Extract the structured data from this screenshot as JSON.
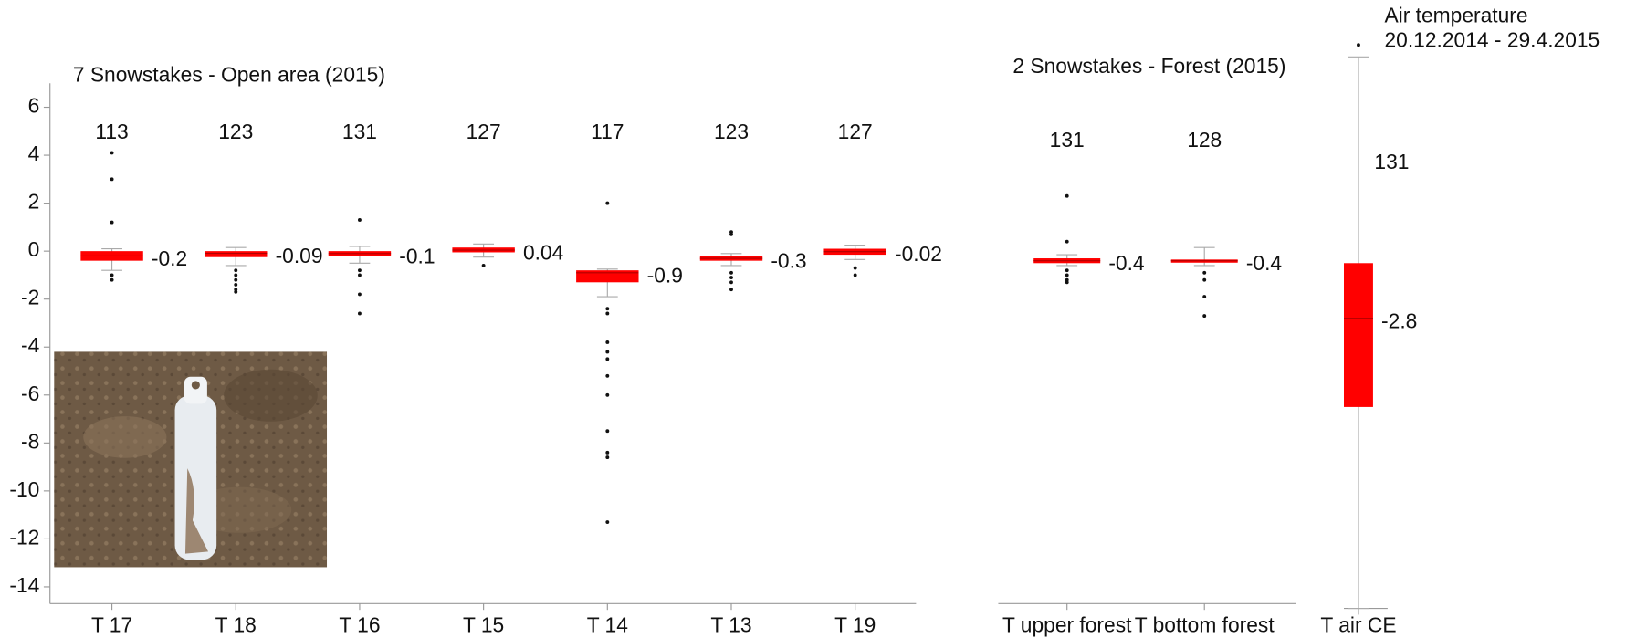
{
  "chart_data": [
    {
      "type": "box",
      "title": "7 Snowstakes - Open area (2015)",
      "categories": [
        "T 17",
        "T 18",
        "T 16",
        "T 15",
        "T 14",
        "T 13",
        "T 19"
      ],
      "n": [
        113,
        123,
        131,
        127,
        117,
        123,
        127
      ],
      "median": [
        -0.2,
        -0.09,
        -0.1,
        0.04,
        -0.9,
        -0.3,
        -0.02
      ],
      "q1": [
        -0.4,
        -0.25,
        -0.2,
        -0.05,
        -1.3,
        -0.4,
        -0.15
      ],
      "q3": [
        0,
        0,
        0,
        0.15,
        -0.8,
        -0.2,
        0.1
      ],
      "whisker_low": [
        -0.8,
        -0.6,
        -0.5,
        -0.25,
        -1.9,
        -0.6,
        -0.35
      ],
      "whisker_high": [
        0.1,
        0.15,
        0.2,
        0.3,
        -0.75,
        -0.1,
        0.25
      ],
      "outliers": [
        [
          4.1,
          3.0,
          1.2,
          -1.0,
          -1.2
        ],
        [
          -0.8,
          -1.0,
          -1.2,
          -1.4,
          -1.6,
          -1.7
        ],
        [
          1.3,
          -0.8,
          -1.0,
          -1.8,
          -2.6
        ],
        [
          -0.6
        ],
        [
          2.0,
          -2.4,
          -2.6,
          -3.8,
          -4.2,
          -4.5,
          -5.2,
          -6.0,
          -7.5,
          -8.4,
          -8.6,
          -11.3
        ],
        [
          0.8,
          0.7,
          -0.9,
          -1.1,
          -1.3,
          -1.6
        ],
        [
          -0.7,
          -1.0
        ]
      ],
      "color": "#ff0000",
      "ylim": [
        -14.7,
        7
      ],
      "yticks": [
        -14,
        -12,
        -10,
        -8,
        -6,
        -4,
        -2,
        0,
        2,
        4,
        6
      ]
    },
    {
      "type": "box",
      "title": "2 Snowstakes - Forest (2015)",
      "categories": [
        "T upper forest",
        "T bottom forest"
      ],
      "n": [
        131,
        128
      ],
      "median": [
        -0.4,
        -0.4
      ],
      "q1": [
        -0.5,
        -0.45
      ],
      "q3": [
        -0.3,
        -0.35
      ],
      "whisker_low": [
        -0.6,
        -0.6
      ],
      "whisker_high": [
        -0.15,
        0.15
      ],
      "outliers": [
        [
          2.3,
          0.4,
          -0.8,
          -1.0,
          -1.2,
          -1.3
        ],
        [
          -0.9,
          -1.2,
          -1.9,
          -2.7
        ]
      ],
      "color": "#ff0000",
      "ylim": [
        -14.7,
        7
      ]
    },
    {
      "type": "box",
      "title": "Air temperature",
      "subtitle": "20.12.2014 - 29.4.2015",
      "categories": [
        "T air CE"
      ],
      "n": [
        131
      ],
      "median": [
        -2.8
      ],
      "q1": [
        -6.5
      ],
      "q3": [
        -0.5
      ],
      "whisker_low": [
        -14.9
      ],
      "whisker_high": [
        8.1
      ],
      "outliers": [
        [
          8.6
        ]
      ],
      "color": "#ff0000",
      "ylim": [
        -14.9,
        8.1
      ]
    }
  ]
}
